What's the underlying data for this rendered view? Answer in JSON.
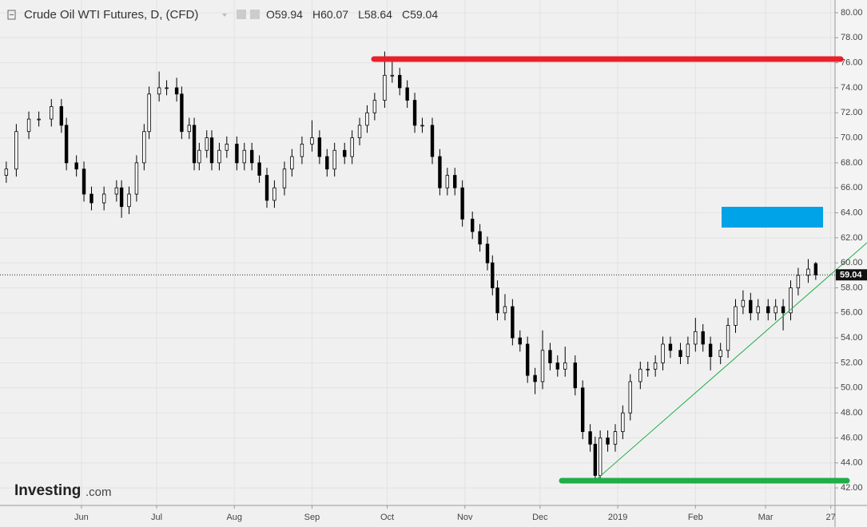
{
  "chart_data": {
    "type": "candlestick",
    "title": "Crude Oil WTI Futures, D, (CFD)",
    "ohlc": [
      {
        "label": "O",
        "value": 59.94
      },
      {
        "label": "H",
        "value": 60.07
      },
      {
        "label": "L",
        "value": 58.64
      },
      {
        "label": "C",
        "value": 59.04
      }
    ],
    "last_price": 59.04,
    "x": [
      -6,
      -2,
      3,
      7,
      12,
      16,
      18,
      22,
      25,
      28,
      33,
      38,
      40,
      43,
      46,
      49,
      51,
      55,
      58,
      62,
      64,
      67,
      69,
      71,
      74,
      76,
      79,
      82,
      86,
      89,
      92,
      95,
      98,
      101,
      105,
      108,
      112,
      116,
      119,
      122,
      125,
      129,
      132,
      135,
      138,
      141,
      145,
      148,
      151,
      154,
      157,
      160,
      164,
      167,
      170,
      173,
      176,
      180,
      183,
      186,
      188,
      190,
      193,
      196,
      199,
      202,
      205,
      208,
      211,
      214,
      217,
      221,
      224,
      227,
      229,
      231,
      234,
      237,
      240,
      243,
      247,
      250,
      253,
      256,
      259,
      263,
      266,
      269,
      272,
      275,
      279,
      282,
      285,
      288,
      291,
      294,
      298,
      301,
      304,
      307,
      310,
      314,
      317
    ],
    "open": [
      67,
      67.5,
      70.5,
      71.5,
      71.5,
      72.5,
      71,
      68,
      67.5,
      65.5,
      64.8,
      65.5,
      66,
      64.5,
      65.5,
      68,
      70.5,
      73.5,
      74,
      74,
      73.5,
      70.5,
      71,
      68,
      69,
      70,
      68,
      69,
      69.5,
      68,
      69,
      68,
      67,
      65,
      66,
      67.5,
      68.5,
      69.5,
      70,
      68.5,
      67.5,
      69,
      68.5,
      70,
      71,
      72,
      73,
      75,
      75,
      74,
      73,
      71,
      71,
      68.5,
      66,
      67,
      66,
      63.5,
      62.5,
      61.5,
      60,
      58,
      56,
      56.5,
      54,
      53.5,
      51,
      50.5,
      53,
      52,
      51.5,
      52,
      50,
      46.5,
      45.5,
      43,
      46,
      45.5,
      46.5,
      48,
      50.5,
      51.5,
      51.5,
      52,
      53.5,
      53,
      52.5,
      53.5,
      54.5,
      53.5,
      52.5,
      53,
      55,
      56.5,
      57,
      56,
      56.5,
      56,
      56.5,
      56,
      58,
      59,
      59.94
    ],
    "high": [
      68.1,
      71.1,
      72.1,
      72.1,
      73.1,
      73.1,
      71.6,
      68.6,
      68.1,
      66.1,
      66.1,
      66.6,
      66.6,
      66.1,
      68.6,
      71.1,
      74.1,
      75.3,
      74.6,
      74.8,
      74.1,
      71.6,
      71.6,
      69.6,
      70.6,
      70.6,
      69.6,
      70.1,
      70.1,
      69.6,
      69.6,
      68.6,
      67.6,
      66.6,
      68.1,
      69.1,
      70.1,
      71.4,
      70.6,
      69.1,
      69.6,
      69.6,
      70.6,
      71.6,
      72.6,
      73.6,
      76.9,
      76.3,
      75.6,
      74.6,
      73.6,
      71.6,
      71.6,
      69.1,
      67.6,
      67.6,
      66.6,
      64.1,
      63.1,
      62.1,
      60.6,
      58.6,
      57.5,
      57.1,
      54.6,
      54.1,
      51.6,
      54.6,
      53.6,
      52.6,
      53.3,
      52.6,
      50.6,
      47.1,
      46.1,
      46.6,
      46.6,
      47.1,
      48.6,
      51.1,
      52.1,
      52.1,
      52.6,
      54.1,
      54.1,
      53.6,
      54.1,
      55.6,
      55.1,
      54.1,
      53.6,
      55.6,
      57.1,
      57.8,
      57.6,
      57.1,
      57.1,
      57.1,
      57.1,
      58.6,
      59.6,
      60.3,
      60.07
    ],
    "low": [
      66.4,
      66.9,
      69.9,
      70.9,
      70.9,
      70.4,
      67.4,
      66.9,
      64.9,
      64.2,
      64.2,
      64.9,
      63.6,
      63.9,
      64.9,
      67.4,
      69.9,
      72.9,
      73.4,
      72.9,
      69.9,
      69.9,
      67.4,
      67.4,
      68.4,
      67.4,
      67.4,
      68.4,
      67.4,
      67.4,
      67.4,
      66.4,
      64.4,
      64.4,
      65.4,
      66.9,
      67.9,
      68.9,
      67.9,
      66.9,
      66.9,
      67.9,
      67.9,
      69.4,
      70.4,
      71.4,
      72.4,
      74.4,
      73.4,
      72.4,
      70.4,
      70.4,
      67.9,
      65.4,
      65.4,
      65.4,
      62.9,
      61.9,
      60.9,
      59.4,
      57.4,
      55.4,
      55.4,
      53.4,
      52.9,
      50.4,
      49.5,
      49.9,
      51.4,
      50.9,
      50.9,
      49.4,
      45.9,
      44.9,
      42.4,
      42.4,
      44.9,
      44.9,
      45.9,
      47.4,
      49.9,
      50.9,
      50.9,
      51.4,
      52.4,
      51.9,
      51.9,
      52.9,
      52.9,
      51.4,
      51.9,
      52.4,
      54.4,
      55.9,
      55.4,
      55.4,
      55.4,
      55.4,
      54.6,
      55.4,
      57.4,
      58.4,
      58.64
    ],
    "close": [
      67.5,
      70.5,
      71.5,
      71.5,
      72.5,
      71,
      68,
      67.5,
      65.5,
      64.8,
      65.5,
      66,
      64.5,
      65.5,
      68,
      70.5,
      73.5,
      74,
      74,
      73.5,
      70.5,
      71,
      68,
      69,
      70,
      68,
      69,
      69.5,
      68,
      69,
      68,
      67,
      65,
      66,
      67.5,
      68.5,
      69.5,
      70,
      68.5,
      67.5,
      69,
      68.5,
      70,
      71,
      72,
      73,
      75,
      75,
      74,
      73,
      71,
      71,
      68.5,
      66,
      67,
      66,
      63.5,
      62.5,
      61.5,
      60,
      58,
      56,
      56.5,
      54,
      53.5,
      51,
      50.5,
      53,
      52,
      51.5,
      52,
      50,
      46.5,
      45.5,
      43,
      46,
      45.5,
      46.5,
      48,
      50.5,
      51.5,
      51.5,
      52,
      53.5,
      53,
      52.5,
      53.5,
      54.5,
      53.5,
      52.5,
      53,
      55,
      56.5,
      57,
      56,
      56.5,
      56,
      56.5,
      56,
      58,
      59,
      59.5,
      59.04
    ],
    "up_color": "#ffffff",
    "down_color": "#000000",
    "wick_color": "#000000",
    "xlim": [
      -8.5,
      324.7
    ],
    "ylim": [
      40.6,
      81.02
    ],
    "xticks": [
      {
        "value": 24,
        "label": "Jun"
      },
      {
        "value": 54,
        "label": "Jul"
      },
      {
        "value": 85,
        "label": "Aug"
      },
      {
        "value": 116,
        "label": "Sep"
      },
      {
        "value": 146,
        "label": "Oct"
      },
      {
        "value": 177,
        "label": "Nov"
      },
      {
        "value": 207,
        "label": "Dec"
      },
      {
        "value": 238,
        "label": "2019"
      },
      {
        "value": 269,
        "label": "Feb"
      },
      {
        "value": 297,
        "label": "Mar"
      },
      {
        "value": 323,
        "label": "27"
      }
    ],
    "yticks": [
      {
        "value": 42,
        "label": "42.00"
      },
      {
        "value": 44,
        "label": "44.00"
      },
      {
        "value": 46,
        "label": "46.00"
      },
      {
        "value": 48,
        "label": "48.00"
      },
      {
        "value": 50,
        "label": "50.00"
      },
      {
        "value": 52,
        "label": "52.00"
      },
      {
        "value": 54,
        "label": "54.00"
      },
      {
        "value": 56,
        "label": "56.00"
      },
      {
        "value": 58,
        "label": "58.00"
      },
      {
        "value": 60,
        "label": "60.00"
      },
      {
        "value": 62,
        "label": "62.00"
      },
      {
        "value": 64,
        "label": "64.00"
      },
      {
        "value": 66,
        "label": "66.00"
      },
      {
        "value": 68,
        "label": "68.00"
      },
      {
        "value": 70,
        "label": "70.00"
      },
      {
        "value": 72,
        "label": "72.00"
      },
      {
        "value": 74,
        "label": "74.00"
      },
      {
        "value": 76,
        "label": "76.00"
      },
      {
        "value": 78,
        "label": "78.00"
      },
      {
        "value": 80,
        "label": "80.00"
      }
    ],
    "grid": true
  },
  "watermark": {
    "brand": "Investing",
    "suffix": ".com"
  }
}
